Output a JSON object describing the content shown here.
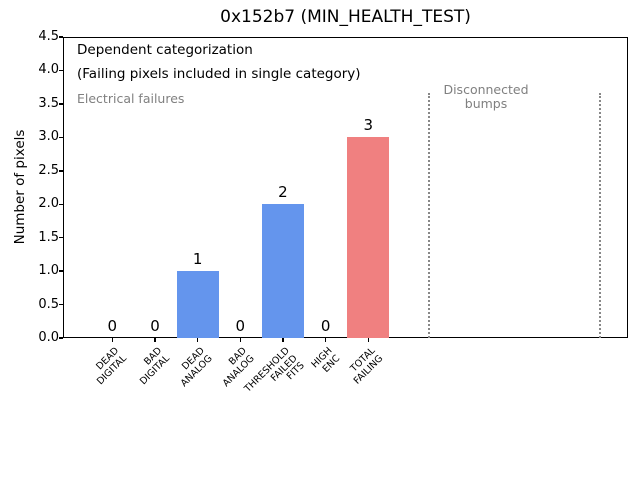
{
  "figure": {
    "title": "0x152b7 (MIN_HEALTH_TEST)"
  },
  "chart_data": {
    "type": "bar",
    "title": "0x152b7 (MIN_HEALTH_TEST)",
    "xlabel": "",
    "ylabel": "Number of pixels",
    "ylim": [
      0,
      4.5
    ],
    "ytick_step": 0.5,
    "grid": false,
    "legend_position": "none",
    "categories": [
      "DEAD\nDIGITAL",
      "BAD\nDIGITAL",
      "DEAD\nANALOG",
      "BAD\nANALOG",
      "THRESHOLD\nFAILED\nFITS",
      "HIGH\nENC",
      "TOTAL\nFAILING"
    ],
    "values": [
      0,
      0,
      1,
      0,
      2,
      0,
      3
    ],
    "value_labels": [
      "0",
      "0",
      "1",
      "0",
      "2",
      "0",
      "3"
    ],
    "bar_colors": [
      "#6495ed",
      "#6495ed",
      "#6495ed",
      "#6495ed",
      "#6495ed",
      "#6495ed",
      "#f08080"
    ],
    "annotations": {
      "line1": "Dependent categorization",
      "line2": "(Failing pixels included in single category)",
      "electrical_region_label": "Electrical failures",
      "disconnected_region_label": "Disconnected\nbumps"
    },
    "region_dividers": {
      "style": "dotted",
      "color": "#888888",
      "count": 2
    }
  },
  "colors": {
    "bar_blue": "#6495ed",
    "bar_red": "#f08080",
    "gray_text": "#808080",
    "divider_gray": "#888888",
    "axis_black": "#000000"
  }
}
